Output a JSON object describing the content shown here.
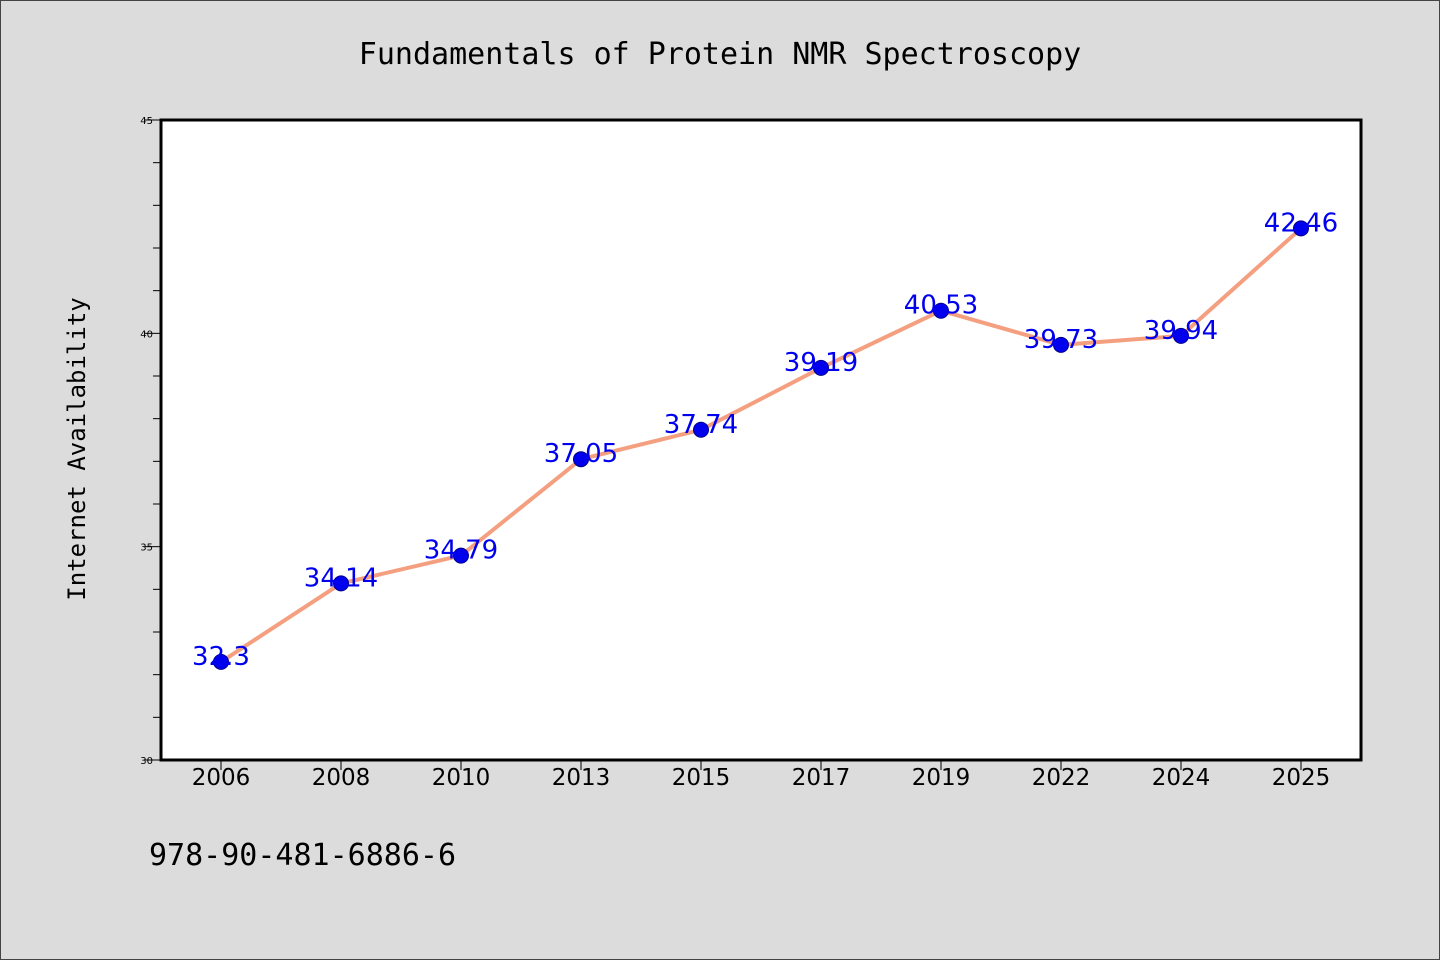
{
  "chart_data": {
    "type": "line",
    "title": "Fundamentals of Protein NMR Spectroscopy",
    "xlabel": "",
    "ylabel": "Internet Availability",
    "categories": [
      "2006",
      "2008",
      "2010",
      "2013",
      "2015",
      "2017",
      "2019",
      "2022",
      "2024",
      "2025"
    ],
    "series": [
      {
        "values": [
          32.3,
          34.14,
          34.79,
          37.05,
          37.74,
          39.19,
          40.53,
          39.73,
          39.94,
          42.46
        ],
        "data_labels": [
          "32.3",
          "34.14",
          "34.79",
          "37.05",
          "37.74",
          "39.19",
          "40.53",
          "39.73",
          "39.94",
          "42.46"
        ]
      }
    ],
    "ylim": [
      30,
      45
    ],
    "yticks": [
      "30",
      "35",
      "40",
      "45"
    ],
    "grid": false,
    "legend": "none",
    "colors": {
      "line": "#f4a080",
      "marker": "#0000ee",
      "data_label": "#0000ee",
      "plot_background": "#ffffff",
      "figure_background": "#dcdcdc"
    }
  },
  "footer": {
    "isbn": "978-90-481-6886-6"
  }
}
